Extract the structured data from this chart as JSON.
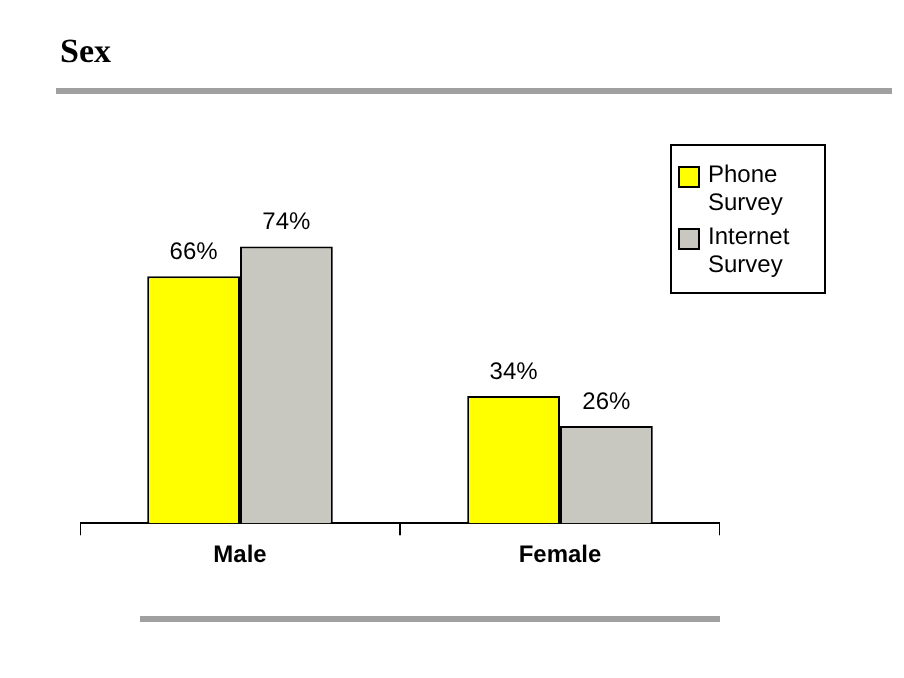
{
  "chart_data": {
    "type": "bar",
    "title": "Sex",
    "categories": [
      "Male",
      "Female"
    ],
    "series": [
      {
        "name": "Phone Survey",
        "color": "#ffff00",
        "values": [
          66,
          34
        ],
        "value_labels": [
          "66%",
          "34%"
        ]
      },
      {
        "name": "Internet Survey",
        "color": "#c8c8c0",
        "values": [
          74,
          26
        ],
        "value_labels": [
          "74%",
          "26%"
        ]
      }
    ],
    "legend": "right",
    "grid": false
  }
}
